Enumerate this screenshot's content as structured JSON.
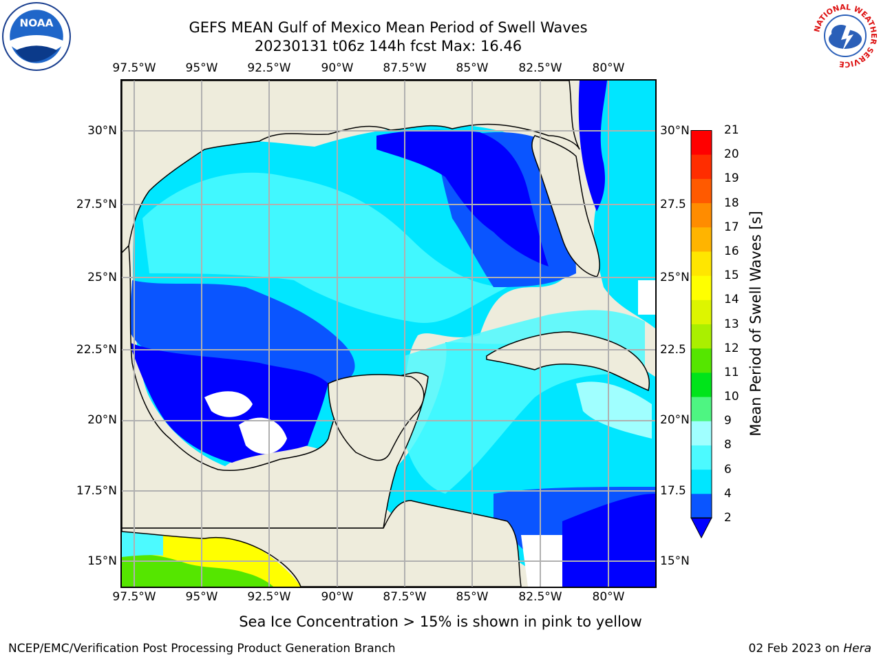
{
  "header": {
    "title_line1": "GEFS MEAN Gulf of Mexico Mean Period of Swell Waves",
    "title_line2": "20230131 t06z 144h fcst   Max: 16.46"
  },
  "logos": {
    "left": "NOAA",
    "right_ring_text": "NATIONAL WEATHER SERVICE"
  },
  "chart_data": {
    "type": "heatmap",
    "title": "GEFS MEAN Gulf of Mexico Mean Period of Swell Waves",
    "subtitle": "20230131 t06z 144h fcst   Max: 16.46",
    "projection": "lat-lon map",
    "x_ticks": [
      "97.5°W",
      "95°W",
      "92.5°W",
      "90°W",
      "87.5°W",
      "85°W",
      "82.5°W",
      "80°W"
    ],
    "y_ticks": [
      "30°N",
      "27.5°N",
      "25°N",
      "22.5°N",
      "20°N",
      "17.5°N",
      "15°N"
    ],
    "right_y_ticks": [
      "30°N",
      "27.5",
      "25°N",
      "22.5",
      "20°N",
      "17.5",
      "15°N"
    ],
    "xlim": [
      -98,
      -78.2
    ],
    "ylim": [
      14,
      31.8
    ],
    "grid": true,
    "colorbar": {
      "label": "Mean Period of Swell Waves [s]",
      "ticks": [
        "2",
        "4",
        "6",
        "8",
        "9",
        "10",
        "11",
        "12",
        "13",
        "14",
        "15",
        "16",
        "17",
        "18",
        "19",
        "20",
        "21"
      ],
      "colors": [
        "#0a55ff",
        "#00e6ff",
        "#4cfaff",
        "#a0ffff",
        "#4ef582",
        "#00e41a",
        "#55e600",
        "#aaef00",
        "#ddf500",
        "#ffff00",
        "#ffe600",
        "#ffb400",
        "#ff8c00",
        "#ff5a00",
        "#ff2d00",
        "#ff0000"
      ],
      "extend_color": "#0000ff"
    },
    "max_value": 16.46
  },
  "footer": {
    "ice_note": "Sea Ice Concentration > 15% is shown in pink to yellow",
    "credit": "NCEP/EMC/Verification Post Processing Product Generation Branch",
    "date": "02 Feb 2023 on ",
    "machine": "Hera"
  }
}
